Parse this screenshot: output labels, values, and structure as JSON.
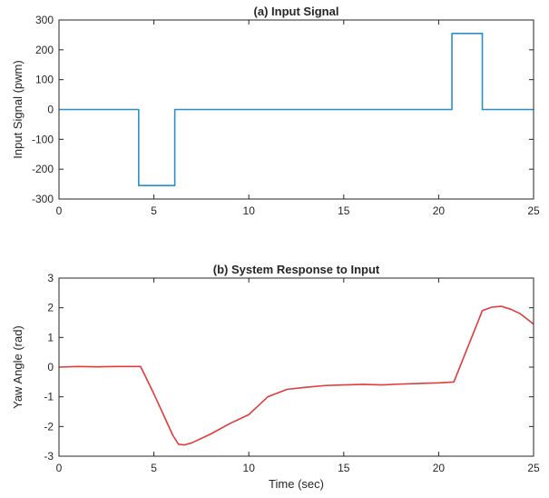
{
  "chart_data": [
    {
      "type": "line",
      "title": "(a) Input Signal",
      "xlabel": "",
      "ylabel": "Input Signal (pwm)",
      "xlim": [
        0,
        25
      ],
      "ylim": [
        -300,
        300
      ],
      "xticks": [
        0,
        5,
        10,
        15,
        20,
        25
      ],
      "yticks": [
        -300,
        -200,
        -100,
        0,
        100,
        200,
        300
      ],
      "grid": false,
      "series": [
        {
          "color": "#2a8fc8",
          "x": [
            0,
            4.2,
            4.2,
            6.1,
            6.1,
            20.7,
            20.7,
            22.3,
            22.3,
            25
          ],
          "y": [
            0,
            0,
            -255,
            -255,
            0,
            0,
            255,
            255,
            0,
            0
          ]
        }
      ]
    },
    {
      "type": "line",
      "title": "(b) System Response to Input",
      "xlabel": "Time (sec)",
      "ylabel": "Yaw Angle (rad)",
      "xlim": [
        0,
        25
      ],
      "ylim": [
        -3,
        3
      ],
      "xticks": [
        0,
        5,
        10,
        15,
        20,
        25
      ],
      "yticks": [
        -3,
        -2,
        -1,
        0,
        1,
        2,
        3
      ],
      "grid": false,
      "series": [
        {
          "color": "#e03c3c",
          "x": [
            0,
            1,
            2,
            3,
            4.3,
            5.0,
            5.5,
            6.0,
            6.3,
            6.6,
            7.0,
            8.0,
            9.0,
            10.0,
            10.5,
            11.0,
            12.0,
            13.0,
            14.0,
            15.0,
            16.0,
            17.0,
            18.0,
            19.0,
            20.0,
            20.8,
            21.3,
            21.8,
            22.3,
            22.8,
            23.3,
            23.8,
            24.3,
            25.0
          ],
          "y": [
            0,
            0.02,
            0.01,
            0.02,
            0.02,
            -0.9,
            -1.6,
            -2.3,
            -2.6,
            -2.62,
            -2.55,
            -2.25,
            -1.9,
            -1.6,
            -1.3,
            -1.0,
            -0.75,
            -0.68,
            -0.62,
            -0.6,
            -0.58,
            -0.6,
            -0.57,
            -0.55,
            -0.53,
            -0.5,
            0.3,
            1.1,
            1.9,
            2.02,
            2.05,
            1.95,
            1.8,
            1.45
          ]
        }
      ]
    }
  ]
}
